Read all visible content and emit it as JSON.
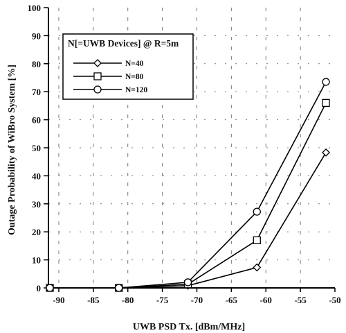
{
  "chart_data": {
    "type": "line",
    "xlabel": "UWB PSD Tx. [dBm/MHz]",
    "ylabel": "Outage Probability of WiBro System [%]",
    "xlim": [
      -91.5,
      -50
    ],
    "ylim": [
      0,
      100
    ],
    "x_ticks": [
      "-90",
      "-85",
      "-80",
      "-75",
      "-70",
      "-65",
      "-60",
      "-55",
      "-50"
    ],
    "y_ticks": [
      "0",
      "10",
      "20",
      "30",
      "40",
      "50",
      "60",
      "70",
      "80",
      "90",
      "100"
    ],
    "grid": "dashed",
    "legend_title": "N[=UWB Devices] @ R=5m",
    "legend_position": "top-left",
    "x": [
      -91.3,
      -81.3,
      -71.3,
      -61.3,
      -51.3
    ],
    "series": [
      {
        "name": "N=40",
        "marker": "diamond",
        "values": [
          0,
          0,
          0.8,
          7.3,
          48.3
        ]
      },
      {
        "name": "N=80",
        "marker": "square",
        "values": [
          0,
          0,
          1.3,
          17,
          66
        ]
      },
      {
        "name": "N=120",
        "marker": "circle",
        "values": [
          0,
          0,
          2,
          27.2,
          73.5
        ]
      }
    ]
  }
}
